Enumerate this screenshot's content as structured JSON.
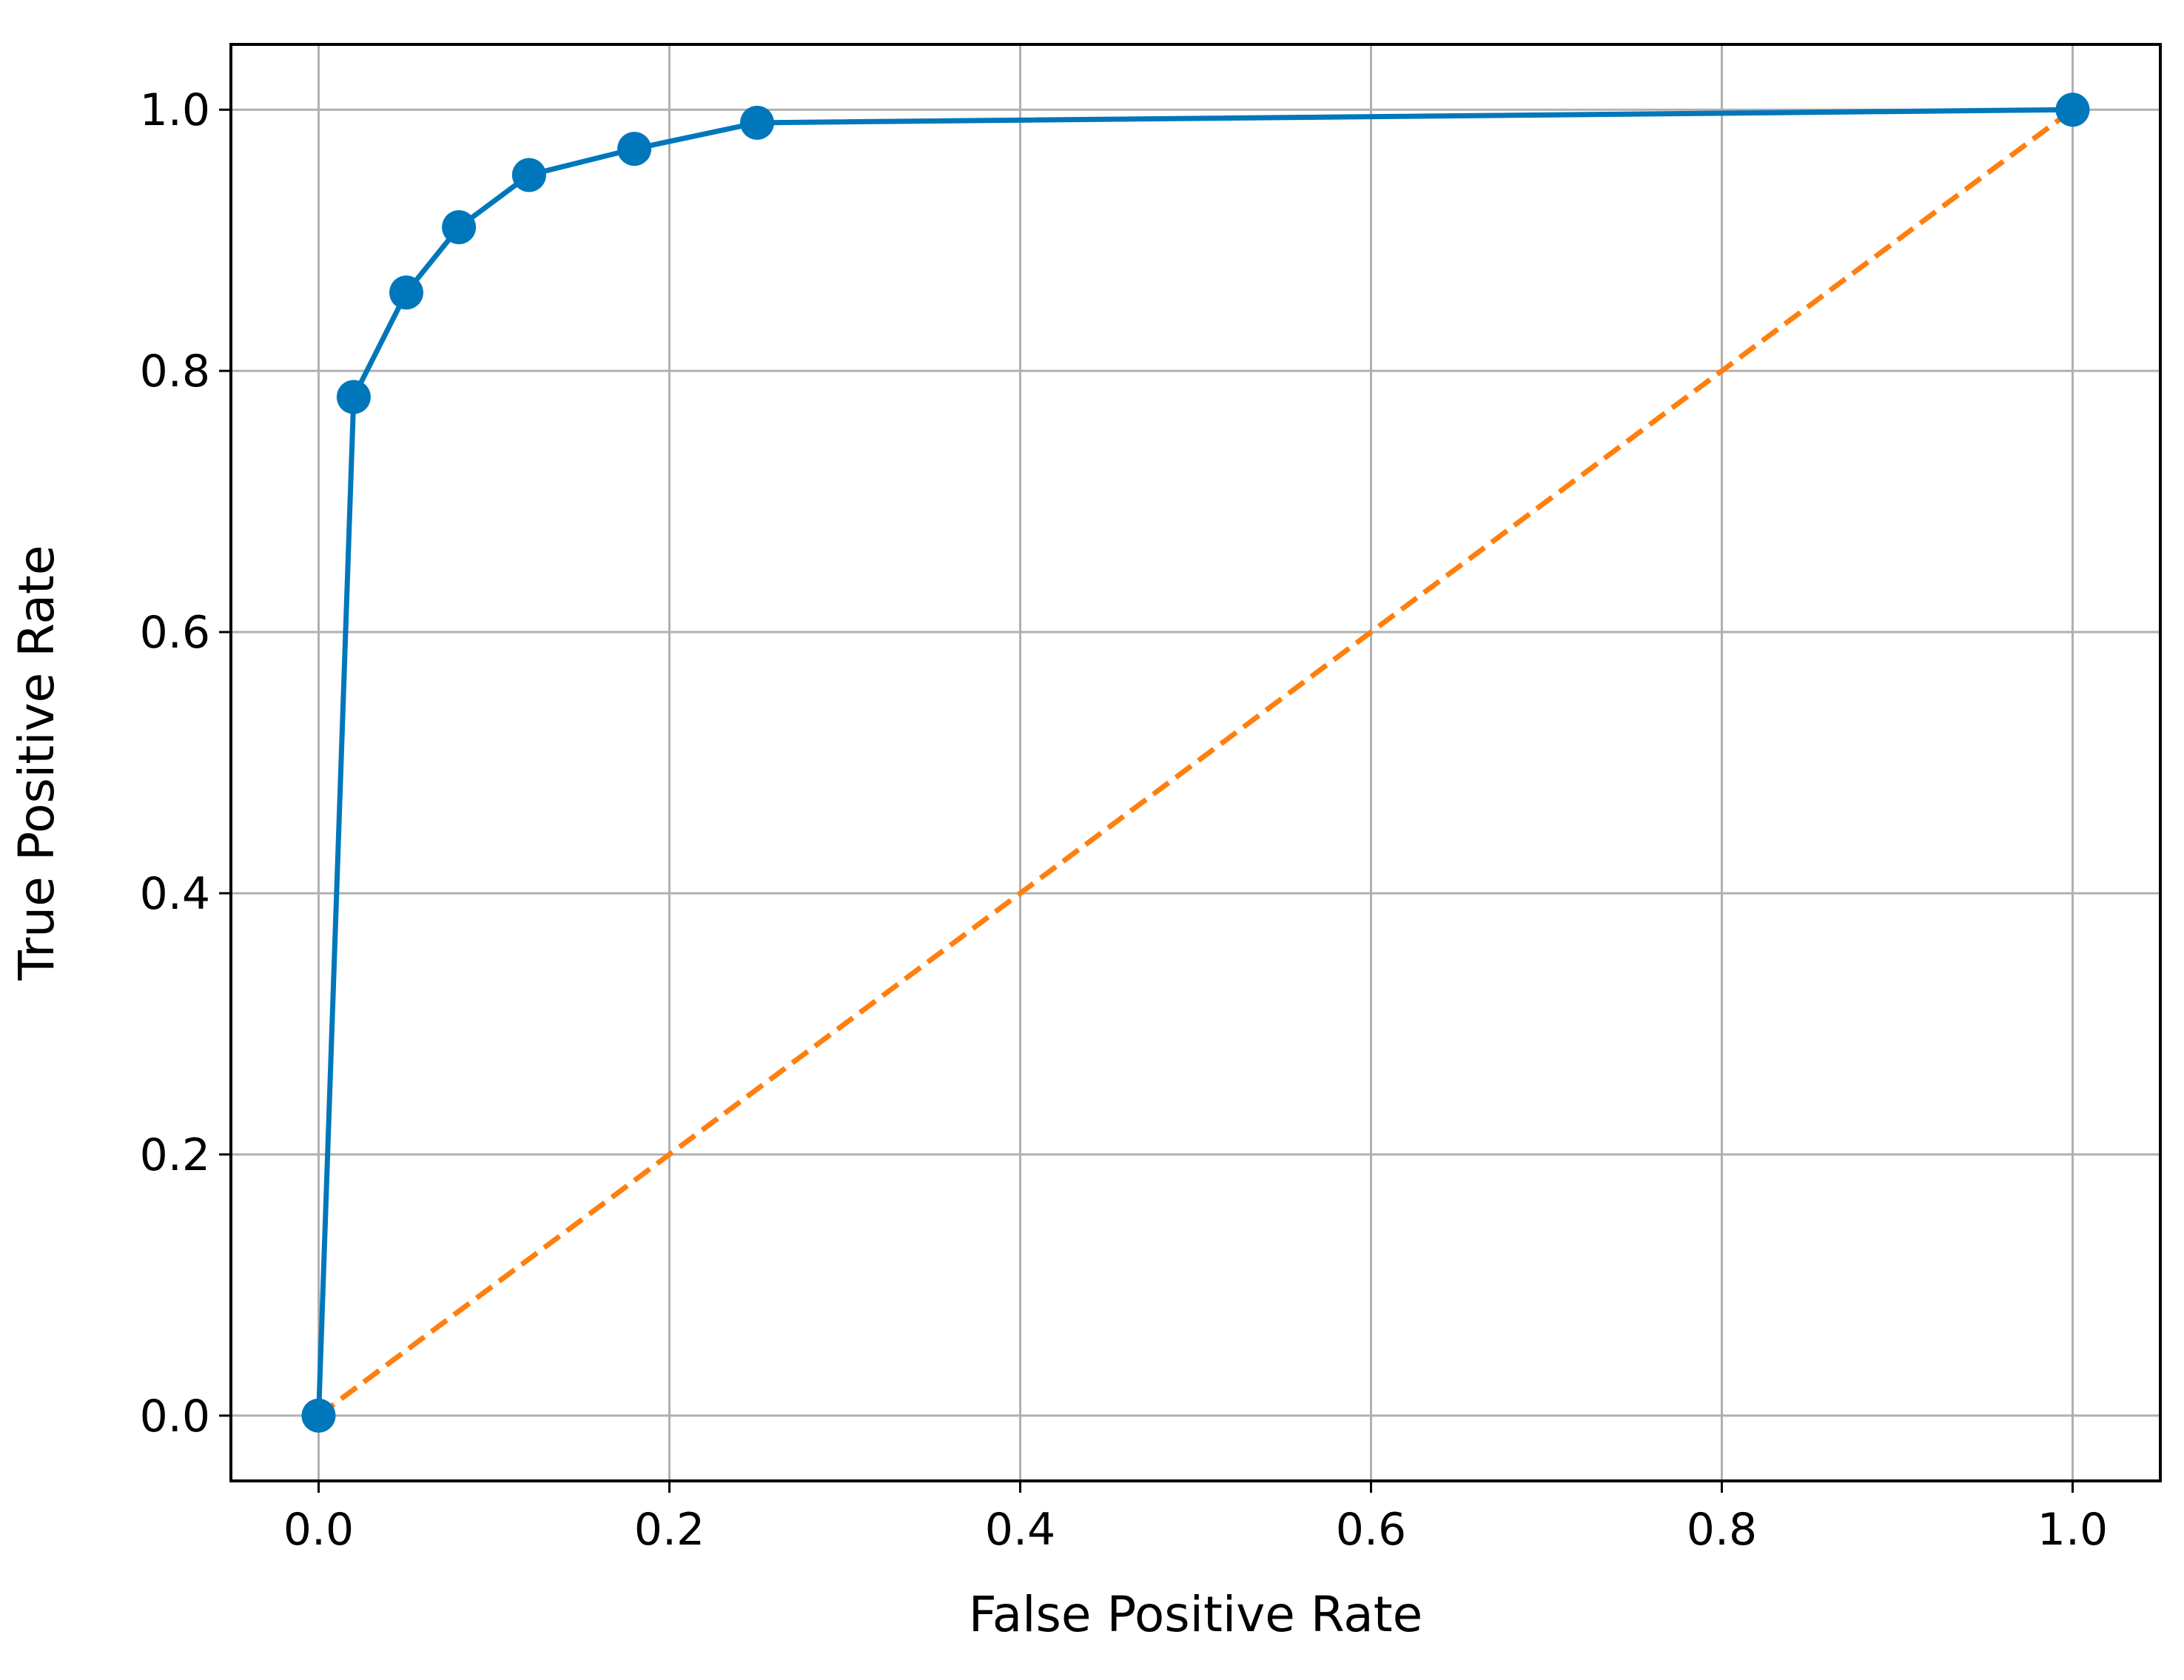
{
  "chart_data": {
    "type": "line",
    "title": "",
    "xlabel": "False Positive Rate",
    "ylabel": "True Positive Rate",
    "xlim": [
      -0.05,
      1.05
    ],
    "ylim": [
      -0.05,
      1.05
    ],
    "grid": true,
    "x_ticks": [
      "0.0",
      "0.2",
      "0.4",
      "0.6",
      "0.8",
      "1.0"
    ],
    "y_ticks": [
      "0.0",
      "0.2",
      "0.4",
      "0.6",
      "0.8",
      "1.0"
    ],
    "series": [
      {
        "style": "solid line with circle markers",
        "color": "#0077BB",
        "x": [
          0.0,
          0.02,
          0.05,
          0.08,
          0.12,
          0.18,
          0.25,
          1.0
        ],
        "y": [
          0.0,
          0.78,
          0.86,
          0.91,
          0.95,
          0.97,
          0.99,
          1.0
        ]
      },
      {
        "style": "dashed line",
        "color": "#FF7F0E",
        "x": [
          0.0,
          1.0
        ],
        "y": [
          0.0,
          1.0
        ]
      }
    ]
  }
}
